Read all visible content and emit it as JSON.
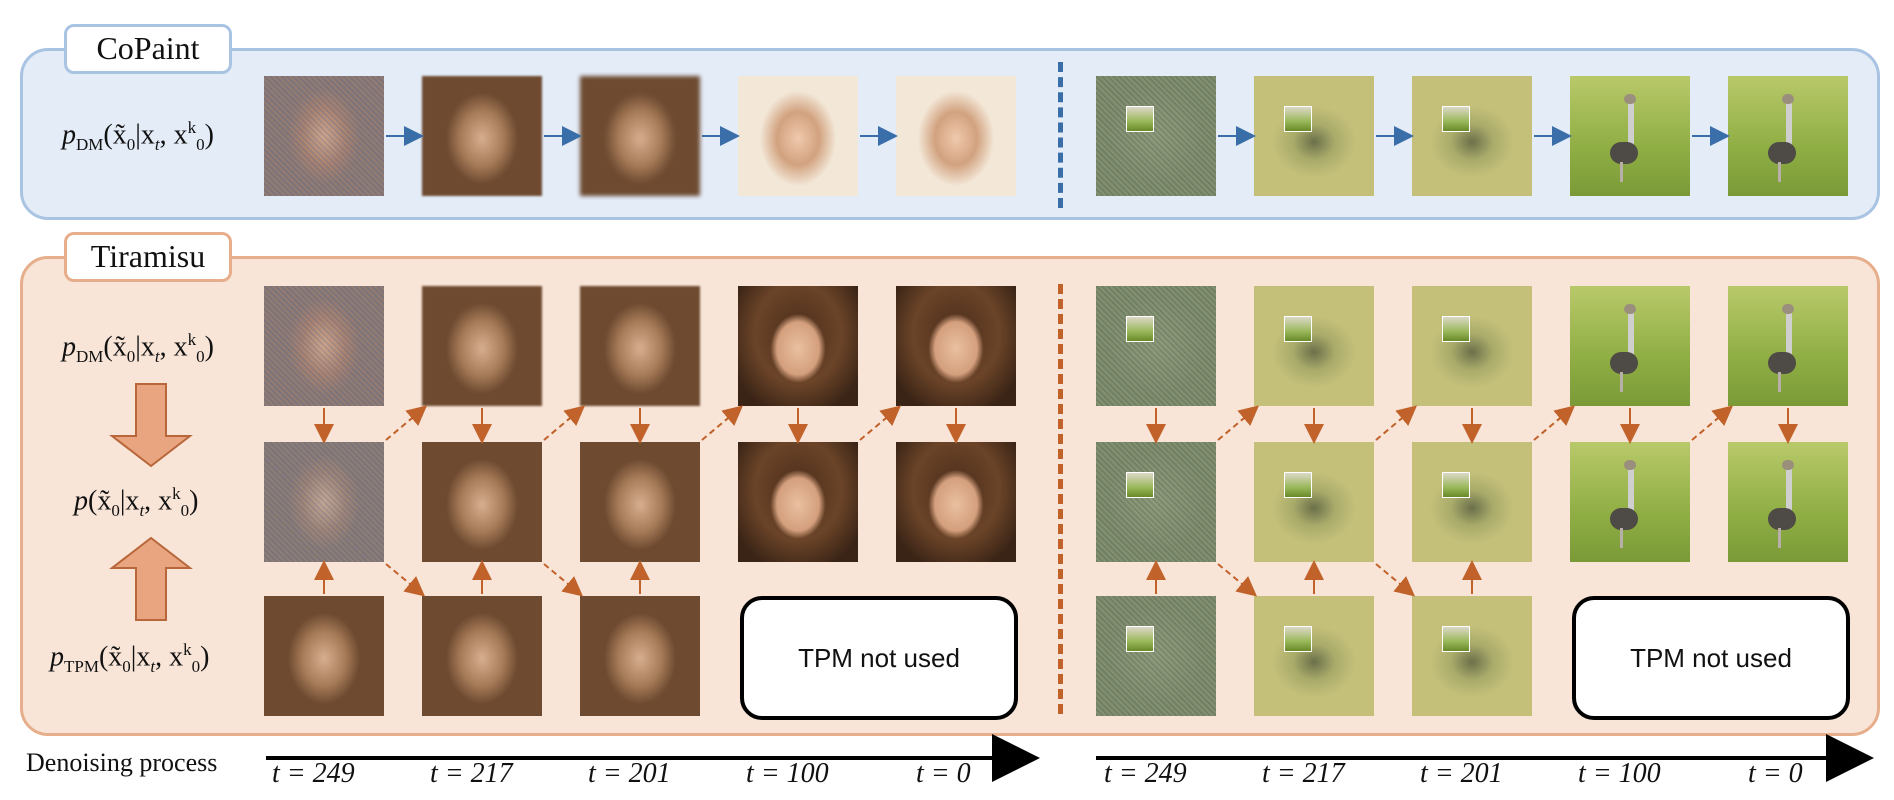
{
  "copaint": {
    "title": "CoPaint"
  },
  "tiramisu": {
    "title": "Tiramisu"
  },
  "labels": {
    "pdm": {
      "p": "p",
      "sub": "DM",
      "expr": "(x̃",
      "zero": "0",
      "given": "|x",
      "t": "t",
      "comma": ", x",
      "k": "k",
      "k0": "0",
      "close": ")"
    },
    "p": {
      "p": "p",
      "expr": "(x̃",
      "zero": "0",
      "given": "|x",
      "t": "t",
      "comma": ", x",
      "k": "k",
      "k0": "0",
      "close": ")"
    },
    "ptpm": {
      "p": "p",
      "sub": "TPM",
      "expr": "(x̃",
      "zero": "0",
      "given": "|x",
      "t": "t",
      "comma": ", x",
      "k": "k",
      "k0": "0",
      "close": ")"
    }
  },
  "tpm_box_text": "TPM not used",
  "axis_label": "Denoising process",
  "timesteps": [
    "t = 249",
    "t = 217",
    "t = 201",
    "t = 100",
    "t = 0"
  ],
  "colors": {
    "copaint_bg": "#e3ecf7",
    "copaint_border": "#a9c3e3",
    "tiramisu_bg": "#f9e5d8",
    "tiramisu_border": "#e6ae8a",
    "blue_arrow": "#3a6ea8",
    "orange_arrow": "#c0622a"
  }
}
